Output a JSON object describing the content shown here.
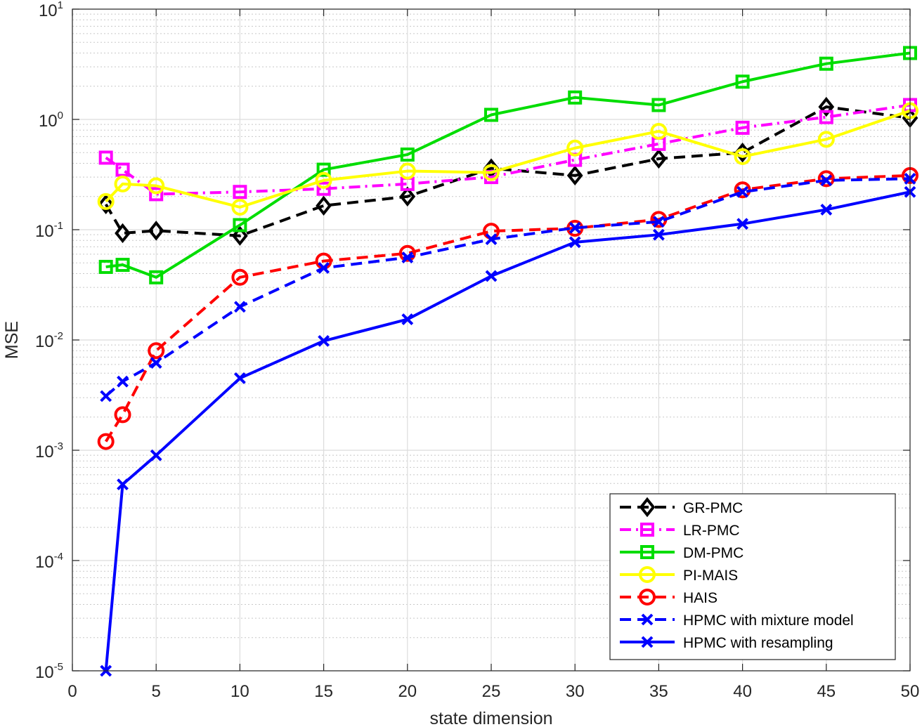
{
  "chart_data": {
    "type": "line",
    "title": "",
    "xlabel": "state dimension",
    "ylabel": "MSE",
    "xscale": "linear",
    "yscale": "log",
    "xlim": [
      0,
      50
    ],
    "ylim": [
      1e-05,
      10
    ],
    "x_ticks": [
      0,
      5,
      10,
      15,
      20,
      25,
      30,
      35,
      40,
      45,
      50
    ],
    "y_ticks": [
      {
        "base": "10",
        "exp": "-5"
      },
      {
        "base": "10",
        "exp": "-4"
      },
      {
        "base": "10",
        "exp": "-3"
      },
      {
        "base": "10",
        "exp": "-2"
      },
      {
        "base": "10",
        "exp": "-1"
      },
      {
        "base": "10",
        "exp": "0"
      },
      {
        "base": "10",
        "exp": "1"
      }
    ],
    "grid": true,
    "minor_grid": true,
    "legend_position": "bottom-right",
    "x": [
      2,
      3,
      5,
      10,
      15,
      20,
      25,
      30,
      35,
      40,
      45,
      50
    ],
    "series": [
      {
        "name": "GR-PMC",
        "color": "#000000",
        "dash": "dashed",
        "marker": "diamond",
        "values": [
          0.17,
          0.093,
          0.098,
          0.088,
          0.165,
          0.2,
          0.36,
          0.31,
          0.44,
          0.5,
          1.3,
          1.03
        ]
      },
      {
        "name": "LR-PMC",
        "color": "#ff00ff",
        "dash": "dashdot",
        "marker": "square",
        "values": [
          0.45,
          0.35,
          0.21,
          0.22,
          0.235,
          0.26,
          0.3,
          0.43,
          0.6,
          0.84,
          1.05,
          1.35
        ]
      },
      {
        "name": "DM-PMC",
        "color": "#00dd00",
        "dash": "solid",
        "marker": "square",
        "values": [
          0.046,
          0.048,
          0.037,
          0.11,
          0.35,
          0.48,
          1.1,
          1.58,
          1.35,
          2.2,
          3.2,
          4.0
        ]
      },
      {
        "name": "PI-MAIS",
        "color": "#ffff00",
        "dash": "solid",
        "marker": "circle",
        "values": [
          0.18,
          0.26,
          0.25,
          0.16,
          0.28,
          0.34,
          0.33,
          0.55,
          0.78,
          0.46,
          0.66,
          1.2
        ]
      },
      {
        "name": "HAIS",
        "color": "#ff0000",
        "dash": "dashed",
        "marker": "circle",
        "values": [
          0.0012,
          0.0021,
          0.008,
          0.037,
          0.052,
          0.061,
          0.097,
          0.103,
          0.124,
          0.23,
          0.29,
          0.31
        ]
      },
      {
        "name": "HPMC with mixture model",
        "color": "#0000ff",
        "dash": "dashed",
        "marker": "x",
        "values": [
          0.0031,
          0.0042,
          0.0062,
          0.02,
          0.045,
          0.056,
          0.082,
          0.104,
          0.118,
          0.22,
          0.28,
          0.29
        ]
      },
      {
        "name": "HPMC with resampling",
        "color": "#0000ff",
        "dash": "solid",
        "marker": "x",
        "values": [
          1e-05,
          0.00049,
          0.0009,
          0.0045,
          0.0098,
          0.0154,
          0.038,
          0.077,
          0.09,
          0.113,
          0.152,
          0.22
        ]
      }
    ]
  }
}
